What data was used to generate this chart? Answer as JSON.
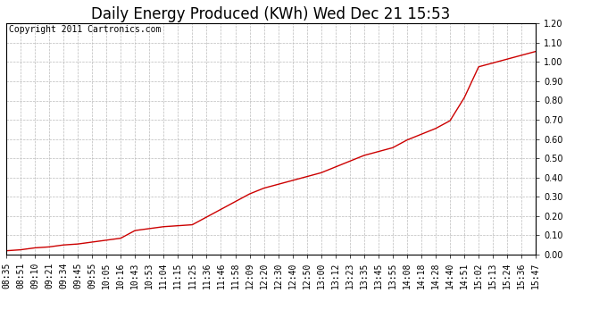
{
  "title": "Daily Energy Produced (KWh) Wed Dec 21 15:53",
  "copyright_text": "Copyright 2011 Cartronics.com",
  "line_color": "#cc0000",
  "background_color": "#ffffff",
  "grid_color": "#bbbbbb",
  "ylim": [
    0.0,
    1.2
  ],
  "yticks": [
    0.0,
    0.1,
    0.2,
    0.3,
    0.4,
    0.5,
    0.6,
    0.7,
    0.8,
    0.9,
    1.0,
    1.1,
    1.2
  ],
  "x_labels": [
    "08:35",
    "08:51",
    "09:10",
    "09:21",
    "09:34",
    "09:45",
    "09:55",
    "10:05",
    "10:16",
    "10:43",
    "10:53",
    "11:04",
    "11:15",
    "11:25",
    "11:36",
    "11:46",
    "11:58",
    "12:09",
    "12:20",
    "12:30",
    "12:40",
    "12:50",
    "13:00",
    "13:12",
    "13:23",
    "13:35",
    "13:45",
    "13:55",
    "14:08",
    "14:18",
    "14:28",
    "14:40",
    "14:51",
    "15:02",
    "15:13",
    "15:24",
    "15:36",
    "15:47"
  ],
  "y_values": [
    0.02,
    0.025,
    0.035,
    0.04,
    0.05,
    0.055,
    0.065,
    0.075,
    0.085,
    0.125,
    0.135,
    0.145,
    0.15,
    0.155,
    0.195,
    0.235,
    0.275,
    0.315,
    0.345,
    0.365,
    0.385,
    0.405,
    0.425,
    0.455,
    0.485,
    0.515,
    0.535,
    0.555,
    0.595,
    0.625,
    0.655,
    0.695,
    0.815,
    0.975,
    0.995,
    1.015,
    1.035,
    1.055
  ],
  "title_fontsize": 12,
  "tick_fontsize": 7,
  "copyright_fontsize": 7,
  "ylabel_fontsize": 9
}
